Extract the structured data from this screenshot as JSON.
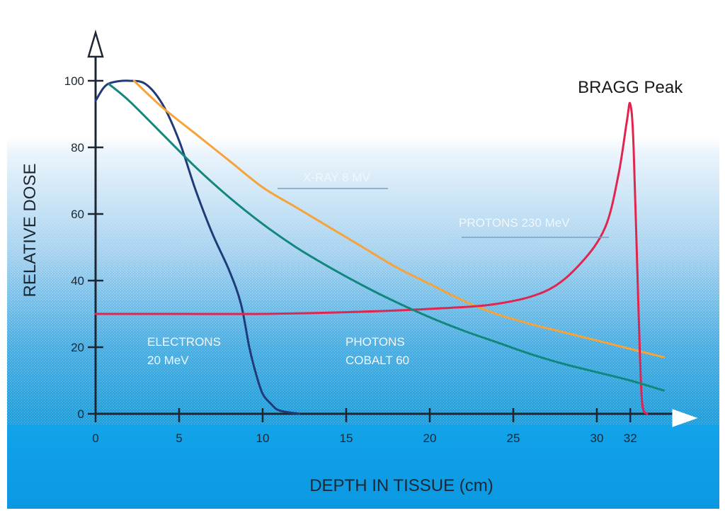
{
  "chart_data": {
    "type": "line",
    "xlabel": "DEPTH IN TISSUE (cm)",
    "ylabel": "RELATIVE DOSE",
    "xlim": [
      0,
      35
    ],
    "ylim": [
      0,
      100
    ],
    "x_ticks": [
      0,
      5,
      10,
      15,
      20,
      25,
      30,
      32
    ],
    "y_ticks": [
      0,
      20,
      40,
      60,
      80,
      100
    ],
    "grid": false,
    "annotations": [
      {
        "text": "BRAGG Peak",
        "x": 32,
        "y": 93
      }
    ],
    "series": [
      {
        "name": "ELECTRONS 20 MeV",
        "label_lines": [
          "ELECTRONS",
          "20 MeV"
        ],
        "color": "#1f3b78",
        "x": [
          0,
          0.5,
          1,
          2,
          3,
          4,
          5,
          6,
          7,
          8,
          8.7,
          9.2,
          9.6,
          10,
          10.5,
          11,
          12.2
        ],
        "y": [
          94,
          98,
          99.5,
          100,
          99,
          93,
          82,
          67,
          54,
          43,
          33,
          20,
          12,
          6,
          3,
          1,
          0
        ]
      },
      {
        "name": "X-RAY 8 MV",
        "label_lines": [
          "X-RAY 8 MV"
        ],
        "color": "#f5a33a",
        "x": [
          2.3,
          4,
          6,
          8,
          10,
          12,
          14,
          16,
          18,
          20,
          22,
          24,
          26,
          28,
          30,
          32,
          34
        ],
        "y": [
          100,
          92,
          84,
          76,
          68,
          62,
          56,
          50,
          44,
          39,
          34,
          30,
          27,
          24.5,
          22,
          19.5,
          17
        ]
      },
      {
        "name": "PROTONS 230 MeV",
        "label_lines": [
          "PROTONS 230 MeV"
        ],
        "color": "#e0264e",
        "x": [
          0,
          5,
          10,
          15,
          20,
          24,
          27,
          29,
          30.5,
          31.3,
          31.8,
          32,
          32.2,
          32.5,
          32.7,
          33
        ],
        "y": [
          30,
          30,
          30,
          30.5,
          31.5,
          33,
          37,
          45,
          56,
          72,
          88,
          93,
          80,
          30,
          4,
          0
        ]
      },
      {
        "name": "PHOTONS COBALT 60",
        "label_lines": [
          "PHOTONS",
          "COBALT 60"
        ],
        "color": "#12877d",
        "x": [
          0.8,
          2,
          4,
          6,
          8,
          10,
          12,
          14,
          16,
          18,
          20,
          22,
          24,
          26,
          28,
          30,
          32,
          34
        ],
        "y": [
          99,
          94,
          84,
          74,
          65,
          57,
          50,
          44,
          38.5,
          33.5,
          29,
          25,
          21.5,
          18,
          15,
          12.5,
          10,
          7
        ]
      }
    ]
  }
}
